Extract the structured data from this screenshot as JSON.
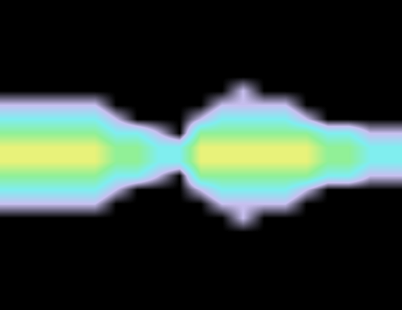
{
  "chart_data": {
    "type": "heatmap",
    "tick_labels": false,
    "cells": [
      [
        0,
        0,
        0,
        0,
        0,
        0,
        0,
        0,
        0,
        0,
        0,
        0,
        0,
        0,
        0,
        0,
        0,
        0,
        0
      ],
      [
        0,
        0,
        0,
        0,
        0,
        0,
        0,
        0,
        0,
        0,
        0,
        0,
        0,
        0,
        0,
        0,
        0,
        0,
        0
      ],
      [
        0,
        0,
        0,
        0,
        0,
        0,
        0,
        0,
        0,
        0,
        0,
        0,
        0,
        0,
        0,
        0,
        0,
        0,
        0
      ],
      [
        0,
        0,
        0,
        0,
        0,
        0,
        0,
        0,
        0,
        0,
        0,
        0,
        0,
        0,
        0,
        0,
        0,
        0,
        0
      ],
      [
        0,
        0,
        0,
        0,
        0,
        0,
        0,
        0,
        0,
        0,
        0,
        0,
        0,
        0,
        0,
        0,
        0,
        0,
        0
      ],
      [
        0,
        0,
        0,
        0,
        0,
        0,
        0,
        0,
        0,
        0,
        0,
        0,
        0,
        0,
        0,
        0,
        0,
        0,
        0
      ],
      [
        0,
        0,
        0,
        0,
        0,
        0,
        0,
        0,
        0,
        0,
        0,
        1,
        0,
        0,
        0,
        0,
        0,
        0,
        0
      ],
      [
        1,
        1,
        1,
        1,
        1,
        0,
        0,
        0,
        0,
        0,
        1,
        1,
        1,
        1,
        0,
        0,
        0,
        0,
        0
      ],
      [
        2,
        2,
        2,
        2,
        2,
        1,
        0,
        0,
        0,
        1,
        2,
        2,
        2,
        2,
        1,
        0,
        0,
        0,
        0
      ],
      [
        3,
        3,
        3,
        3,
        3,
        2,
        2,
        1,
        0,
        3,
        3,
        3,
        3,
        3,
        3,
        2,
        2,
        1,
        1
      ],
      [
        4,
        4,
        4,
        4,
        4,
        3,
        3,
        2,
        2,
        4,
        4,
        4,
        4,
        4,
        4,
        3,
        3,
        2,
        2
      ],
      [
        4,
        4,
        4,
        4,
        4,
        3,
        3,
        2,
        2,
        4,
        4,
        4,
        4,
        4,
        4,
        3,
        3,
        2,
        2
      ],
      [
        3,
        3,
        3,
        3,
        3,
        2,
        2,
        1,
        0,
        3,
        3,
        3,
        3,
        3,
        3,
        2,
        2,
        1,
        1
      ],
      [
        2,
        2,
        2,
        2,
        2,
        1,
        0,
        0,
        0,
        1,
        2,
        2,
        2,
        2,
        1,
        0,
        0,
        0,
        0
      ],
      [
        1,
        1,
        1,
        1,
        1,
        0,
        0,
        0,
        0,
        0,
        1,
        1,
        1,
        1,
        0,
        0,
        0,
        0,
        0
      ],
      [
        0,
        0,
        0,
        0,
        0,
        0,
        0,
        0,
        0,
        0,
        0,
        1,
        0,
        0,
        0,
        0,
        0,
        0,
        0
      ],
      [
        0,
        0,
        0,
        0,
        0,
        0,
        0,
        0,
        0,
        0,
        0,
        0,
        0,
        0,
        0,
        0,
        0,
        0,
        0
      ],
      [
        0,
        0,
        0,
        0,
        0,
        0,
        0,
        0,
        0,
        0,
        0,
        0,
        0,
        0,
        0,
        0,
        0,
        0,
        0
      ],
      [
        0,
        0,
        0,
        0,
        0,
        0,
        0,
        0,
        0,
        0,
        0,
        0,
        0,
        0,
        0,
        0,
        0,
        0,
        0
      ],
      [
        0,
        0,
        0,
        0,
        0,
        0,
        0,
        0,
        0,
        0,
        0,
        0,
        0,
        0,
        0,
        0,
        0,
        0,
        0
      ],
      [
        0,
        0,
        0,
        0,
        0,
        0,
        0,
        0,
        0,
        0,
        0,
        0,
        0,
        0,
        0,
        0,
        0,
        0,
        0
      ],
      [
        0,
        0,
        0,
        0,
        0,
        0,
        0,
        0,
        0,
        0,
        0,
        0,
        0,
        0,
        0,
        0,
        0,
        0,
        0
      ]
    ]
  }
}
